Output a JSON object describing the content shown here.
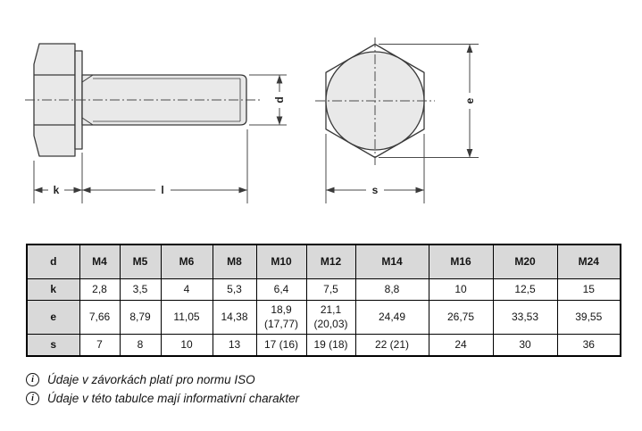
{
  "drawing": {
    "labels": {
      "d": "d",
      "k": "k",
      "l": "l",
      "e": "e",
      "s": "s"
    }
  },
  "table": {
    "header": [
      "d",
      "M4",
      "M5",
      "M6",
      "M8",
      "M10",
      "M12",
      "M14",
      "M16",
      "M20",
      "M24"
    ],
    "rows": [
      {
        "label": "k",
        "values": [
          "2,8",
          "3,5",
          "4",
          "5,3",
          "6,4",
          "7,5",
          "8,8",
          "10",
          "12,5",
          "15"
        ]
      },
      {
        "label": "e",
        "values": [
          "7,66",
          "8,79",
          "11,05",
          "14,38",
          "18,9\n(17,77)",
          "21,1\n(20,03)",
          "24,49",
          "26,75",
          "33,53",
          "39,55"
        ]
      },
      {
        "label": "s",
        "values": [
          "7",
          "8",
          "10",
          "13",
          "17 (16)",
          "19 (18)",
          "22 (21)",
          "24",
          "30",
          "36"
        ]
      }
    ]
  },
  "notes": [
    {
      "icon": "i",
      "text": "Údaje v závorkách platí pro normu ISO"
    },
    {
      "icon": "i",
      "text": "Údaje v této tabulce mají informativní charakter"
    }
  ],
  "colors": {
    "part_fill": "#e9e9e9",
    "object_line": "#3a3a3a",
    "dimension_line": "#4a4a4a",
    "table_header_bg": "#d9d9d9",
    "table_border": "#000000"
  }
}
